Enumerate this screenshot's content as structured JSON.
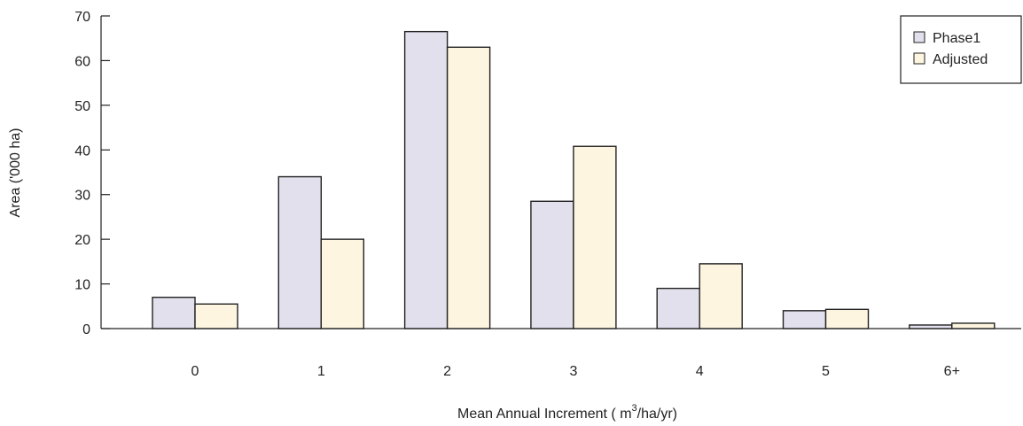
{
  "chart_data": {
    "type": "bar",
    "categories": [
      "0",
      "1",
      "2",
      "3",
      "4",
      "5",
      "6+"
    ],
    "series": [
      {
        "name": "Phase1",
        "values": [
          7.0,
          34.0,
          66.5,
          28.5,
          9.0,
          4.0,
          0.8
        ],
        "color": "#e2e0ec"
      },
      {
        "name": "Adjusted",
        "values": [
          5.5,
          20.0,
          63.0,
          40.8,
          14.5,
          4.3,
          1.2
        ],
        "color": "#fdf5df"
      }
    ],
    "ylabel": "Area ('000 ha)",
    "xlabel": {
      "before": "Mean Annual Increment ( m",
      "superscript": "3",
      "after": "/ha/yr)"
    },
    "ylim": [
      0,
      70
    ],
    "yticks": [
      "0",
      "10",
      "20",
      "30",
      "40",
      "50",
      "60",
      "70"
    ],
    "grid": false,
    "legend_position": "top-right",
    "bar_edge_color": "#222222"
  }
}
